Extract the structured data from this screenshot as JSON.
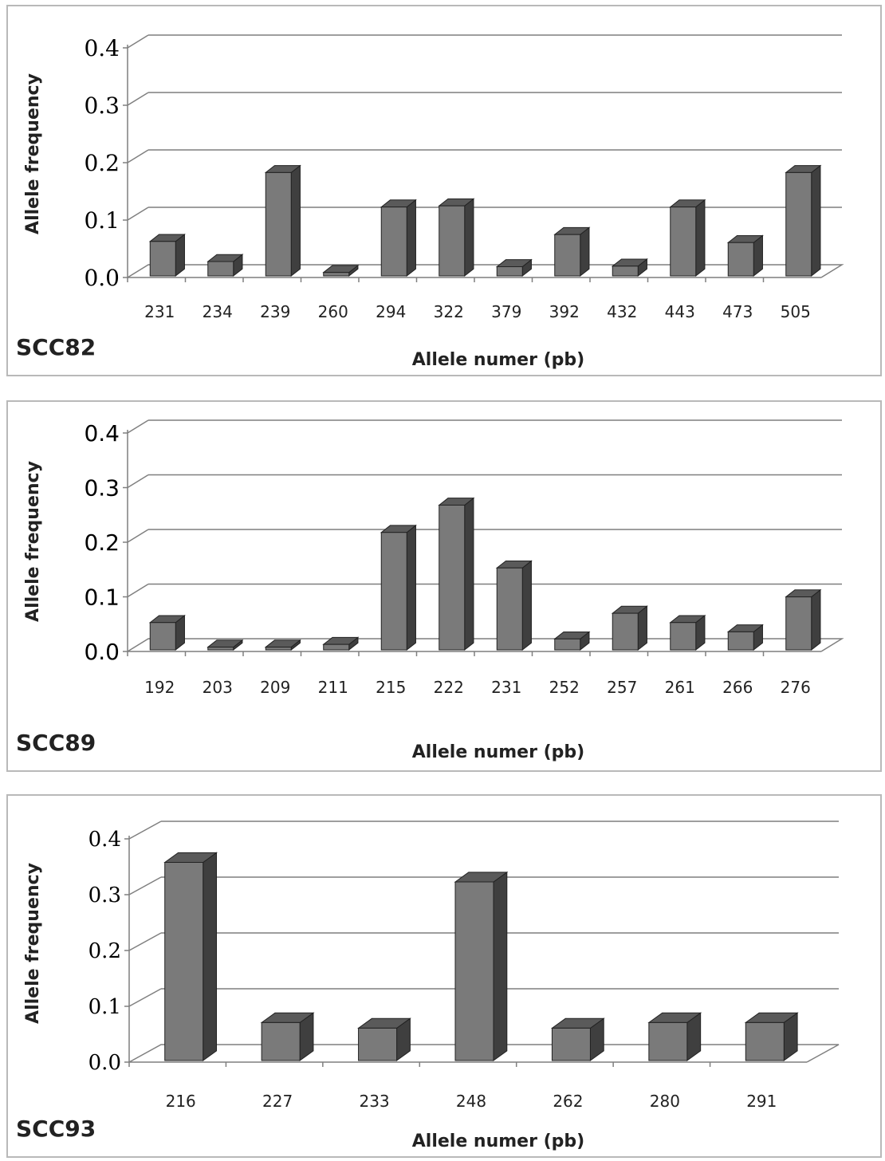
{
  "colors": {
    "bar_front": "#7a7a7a",
    "bar_side": "#3f3f3f",
    "bar_top": "#5a5a5a",
    "grid": "#7f7f7f",
    "panel_border": "#b9b9b9"
  },
  "chart_data": [
    {
      "type": "bar",
      "panel_label": "SCC82",
      "ylabel": "Allele  frequency",
      "xlabel": "Allele numer (pb)",
      "ylim": [
        0,
        0.4
      ],
      "yticks": [
        "0.0",
        "0.1",
        "0.2",
        "0.3",
        "0.4"
      ],
      "grid": true,
      "categories": [
        "231",
        "234",
        "239",
        "260",
        "294",
        "322",
        "379",
        "392",
        "432",
        "443",
        "473",
        "505"
      ],
      "values": [
        0.06,
        0.025,
        0.18,
        0.006,
        0.12,
        0.122,
        0.016,
        0.072,
        0.017,
        0.12,
        0.058,
        0.18
      ]
    },
    {
      "type": "bar",
      "panel_label": "SCC89",
      "ylabel": "Allele  frequency",
      "xlabel": "Allele numer (pb)",
      "ylim": [
        0,
        0.4
      ],
      "yticks": [
        "0.0",
        "0.1",
        "0.2",
        "0.3",
        "0.4"
      ],
      "grid": true,
      "categories": [
        "192",
        "203",
        "209",
        "211",
        "215",
        "222",
        "231",
        "252",
        "257",
        "261",
        "266",
        "276"
      ],
      "values": [
        0.05,
        0.005,
        0.005,
        0.01,
        0.215,
        0.265,
        0.15,
        0.02,
        0.067,
        0.05,
        0.033,
        0.097
      ]
    },
    {
      "type": "bar",
      "panel_label": "SCC93",
      "ylabel": "Allele  frequency",
      "xlabel": "Allele numer (pb)",
      "ylim": [
        0,
        0.4
      ],
      "yticks": [
        "0.0",
        "0.1",
        "0.2",
        "0.3",
        "0.4"
      ],
      "grid": true,
      "categories": [
        "216",
        "227",
        "233",
        "248",
        "262",
        "280",
        "291"
      ],
      "values": [
        0.355,
        0.068,
        0.058,
        0.32,
        0.058,
        0.068,
        0.068
      ]
    }
  ]
}
